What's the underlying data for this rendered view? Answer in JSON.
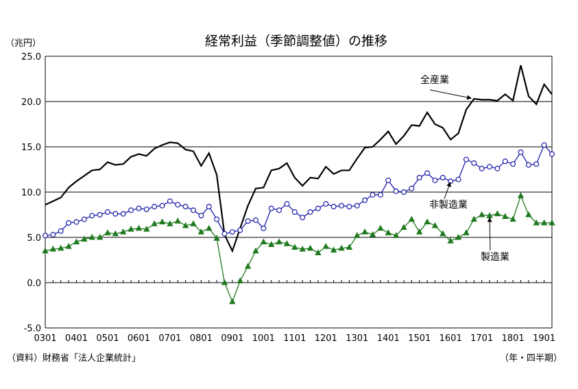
{
  "chart_data": {
    "type": "line",
    "title": "経常利益（季節調整値）の推移",
    "y_unit_label": "（兆円）",
    "x_unit_label": "（年・四半期）",
    "source": "（資料）財務省「法人企業統計」",
    "ylim": [
      -5.0,
      25.0
    ],
    "y_ticks": [
      "25.0",
      "20.0",
      "15.0",
      "10.0",
      "5.0",
      "0.0",
      "-5.0"
    ],
    "x_tick_labels": [
      "0301",
      "0401",
      "0501",
      "0601",
      "0701",
      "0801",
      "0901",
      "1001",
      "1101",
      "1201",
      "1301",
      "1401",
      "1501",
      "1601",
      "1701",
      "1801",
      "1901"
    ],
    "x_start": "2003Q1",
    "grid": true,
    "series": [
      {
        "name": "全産業",
        "color": "#000000",
        "marker": "none",
        "values": [
          8.6,
          9.0,
          9.4,
          10.5,
          11.2,
          11.8,
          12.4,
          12.5,
          13.3,
          13.0,
          13.1,
          13.9,
          14.2,
          14.0,
          14.8,
          15.2,
          15.5,
          15.4,
          14.7,
          14.5,
          12.9,
          14.3,
          11.9,
          5.3,
          3.5,
          6.0,
          8.5,
          10.4,
          10.5,
          12.4,
          12.6,
          13.2,
          11.6,
          10.7,
          11.6,
          11.5,
          12.8,
          12.0,
          12.4,
          12.4,
          13.7,
          14.9,
          15.0,
          15.8,
          16.7,
          15.3,
          16.2,
          17.4,
          17.3,
          18.8,
          17.5,
          17.1,
          15.8,
          16.5,
          19.1,
          20.3,
          20.2,
          20.2,
          20.1,
          20.8,
          20.1,
          24.0,
          20.6,
          19.7,
          21.9,
          20.8
        ]
      },
      {
        "name": "非製造業",
        "color": "#1a1aa8",
        "marker": "circle",
        "values": [
          5.2,
          5.3,
          5.7,
          6.6,
          6.7,
          7.0,
          7.4,
          7.5,
          7.8,
          7.6,
          7.6,
          8.0,
          8.2,
          8.1,
          8.4,
          8.5,
          9.0,
          8.6,
          8.4,
          8.0,
          7.4,
          8.4,
          7.0,
          5.4,
          5.6,
          5.8,
          6.8,
          6.9,
          6.0,
          8.2,
          8.0,
          8.7,
          7.8,
          7.2,
          7.8,
          8.2,
          8.7,
          8.4,
          8.5,
          8.4,
          8.5,
          9.1,
          9.7,
          9.7,
          11.3,
          10.1,
          10.0,
          10.4,
          11.6,
          12.1,
          11.3,
          11.6,
          11.2,
          11.4,
          13.6,
          13.2,
          12.6,
          12.8,
          12.6,
          13.4,
          13.1,
          14.4,
          13.0,
          13.1,
          15.2,
          14.2
        ]
      },
      {
        "name": "製造業",
        "color": "#1f7a1f",
        "marker": "triangle",
        "values": [
          3.5,
          3.7,
          3.8,
          4.0,
          4.5,
          4.8,
          5.0,
          5.0,
          5.5,
          5.4,
          5.6,
          5.9,
          6.0,
          5.9,
          6.5,
          6.7,
          6.5,
          6.8,
          6.3,
          6.5,
          5.6,
          6.0,
          4.9,
          0.0,
          -2.1,
          0.2,
          1.8,
          3.5,
          4.5,
          4.2,
          4.5,
          4.3,
          3.9,
          3.7,
          3.8,
          3.3,
          4.0,
          3.6,
          3.8,
          3.9,
          5.2,
          5.6,
          5.3,
          6.0,
          5.5,
          5.2,
          6.1,
          7.0,
          5.6,
          6.7,
          6.3,
          5.4,
          4.6,
          5.0,
          5.5,
          7.0,
          7.5,
          7.4,
          7.6,
          7.3,
          7.0,
          9.6,
          7.5,
          6.6,
          6.6,
          6.6
        ]
      }
    ]
  }
}
